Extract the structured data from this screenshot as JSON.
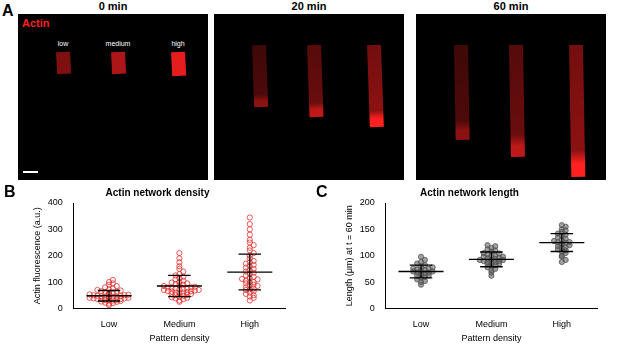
{
  "image_panel": {
    "panel": "A",
    "channel": "Actin",
    "channel_color": "#ff2020",
    "timepoints": [
      "0 min",
      "20 min",
      "60 min"
    ],
    "pattern_labels": [
      "low",
      "medium",
      "high"
    ]
  },
  "chart_data": [
    {
      "type": "strip",
      "panel": "B",
      "title": "Actin network density",
      "x_label": "Pattern density",
      "y_label": "Actin fluorescence (a.u.)",
      "categories": [
        "Low",
        "Medium",
        "High"
      ],
      "values": [
        [
          12,
          18,
          20,
          22,
          25,
          26,
          28,
          30,
          30,
          32,
          33,
          35,
          35,
          36,
          38,
          38,
          40,
          40,
          41,
          42,
          43,
          44,
          45,
          45,
          46,
          47,
          48,
          50,
          50,
          52,
          53,
          55,
          56,
          58,
          60,
          62,
          63,
          65,
          68,
          70,
          72,
          75,
          80,
          85,
          90,
          95,
          100,
          108
        ],
        [
          25,
          30,
          35,
          38,
          40,
          42,
          45,
          48,
          50,
          52,
          55,
          55,
          58,
          60,
          60,
          62,
          64,
          65,
          66,
          68,
          70,
          70,
          72,
          74,
          75,
          76,
          78,
          80,
          80,
          82,
          85,
          88,
          90,
          92,
          95,
          98,
          100,
          105,
          110,
          115,
          120,
          125,
          130,
          140,
          150,
          160,
          175,
          190,
          210
        ],
        [
          30,
          40,
          45,
          50,
          55,
          60,
          65,
          70,
          72,
          75,
          80,
          85,
          88,
          90,
          95,
          100,
          100,
          105,
          110,
          112,
          115,
          120,
          125,
          130,
          135,
          140,
          145,
          150,
          155,
          160,
          165,
          170,
          175,
          180,
          190,
          200,
          210,
          220,
          230,
          240,
          250,
          260,
          280,
          300,
          320,
          345
        ]
      ],
      "mean": [
        48,
        85,
        138
      ],
      "sd": [
        20,
        40,
        68
      ],
      "color": "#e0322d",
      "marker": "circle_open",
      "grid": false,
      "ylim": [
        0,
        400
      ],
      "yticks": [
        0,
        100,
        200,
        300,
        400
      ]
    },
    {
      "type": "strip",
      "panel": "C",
      "title": "Actin network length",
      "x_label": "Pattern density",
      "y_label": "Length (μm) at t = 60 min",
      "categories": [
        "Low",
        "Medium",
        "High"
      ],
      "values": [
        [
          45,
          50,
          52,
          55,
          58,
          60,
          62,
          63,
          65,
          66,
          68,
          68,
          70,
          70,
          72,
          72,
          74,
          75,
          76,
          78,
          80,
          82,
          85,
          88,
          92,
          98
        ],
        [
          62,
          68,
          72,
          75,
          78,
          80,
          82,
          84,
          85,
          86,
          88,
          88,
          90,
          90,
          92,
          92,
          93,
          94,
          95,
          96,
          98,
          98,
          100,
          100,
          102,
          104,
          105,
          108,
          110,
          112,
          115,
          118,
          120
        ],
        [
          88,
          92,
          98,
          100,
          105,
          108,
          110,
          112,
          115,
          116,
          118,
          120,
          122,
          124,
          125,
          126,
          128,
          130,
          132,
          135,
          138,
          140,
          142,
          145,
          148,
          150,
          155,
          158
        ]
      ],
      "mean": [
        70,
        93,
        125
      ],
      "sd": [
        12,
        14,
        17
      ],
      "color": "#555555",
      "marker": "circle",
      "grid": false,
      "ylim": [
        0,
        200
      ],
      "yticks": [
        0,
        50,
        100,
        150,
        200
      ]
    }
  ]
}
